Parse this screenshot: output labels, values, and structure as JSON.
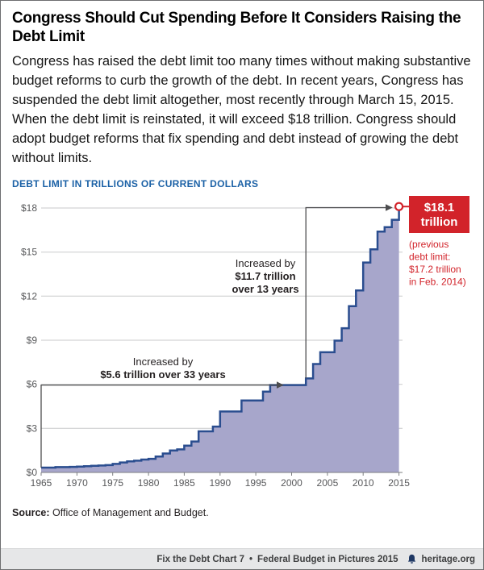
{
  "header": {
    "title": "Congress Should Cut Spending Before It Considers Raising the Debt Limit",
    "intro": "Congress has raised the debt limit too many times without making substantive budget reforms to curb the growth of the debt. In recent years, Congress has suspended the debt limit altogether, most recently through March 15, 2015. When the debt limit is reinstated, it will exceed $18 trillion. Congress should adopt budget reforms that fix spending and debt instead of growing the debt without limits."
  },
  "chart_data": {
    "type": "area",
    "step": true,
    "title": "DEBT LIMIT IN TRILLIONS OF CURRENT DOLLARS",
    "x": [
      1965,
      1966,
      1967,
      1968,
      1969,
      1970,
      1971,
      1972,
      1973,
      1974,
      1975,
      1976,
      1977,
      1978,
      1979,
      1980,
      1981,
      1982,
      1983,
      1984,
      1985,
      1986,
      1987,
      1988,
      1989,
      1990,
      1991,
      1992,
      1993,
      1994,
      1995,
      1996,
      1997,
      1998,
      1999,
      2000,
      2001,
      2002,
      2003,
      2004,
      2005,
      2006,
      2007,
      2008,
      2009,
      2010,
      2011,
      2012,
      2013,
      2014,
      2015
    ],
    "values": [
      0.33,
      0.33,
      0.36,
      0.36,
      0.38,
      0.4,
      0.43,
      0.45,
      0.47,
      0.5,
      0.58,
      0.68,
      0.75,
      0.8,
      0.88,
      0.93,
      1.08,
      1.29,
      1.49,
      1.57,
      1.82,
      2.11,
      2.8,
      2.8,
      3.12,
      4.15,
      4.15,
      4.15,
      4.9,
      4.9,
      4.9,
      5.5,
      5.95,
      5.95,
      5.95,
      5.95,
      5.95,
      6.4,
      7.38,
      8.18,
      8.18,
      8.97,
      9.82,
      11.32,
      12.39,
      14.29,
      15.19,
      16.39,
      16.7,
      17.2,
      18.1
    ],
    "xlim": [
      1965,
      2015.5
    ],
    "ylim": [
      0,
      18
    ],
    "xtick_values": [
      1965,
      1970,
      1975,
      1980,
      1985,
      1990,
      1995,
      2000,
      2005,
      2010,
      2015
    ],
    "ytick_values": [
      0,
      3,
      6,
      9,
      12,
      15,
      18
    ],
    "ytick_labels": [
      "$0",
      "$3",
      "$6",
      "$9",
      "$12",
      "$15",
      "$18"
    ],
    "annotations": [
      {
        "lines": [
          "Increased by",
          "$5.6 trillion over 33 years"
        ]
      },
      {
        "lines": [
          "Increased by",
          "$11.7 trillion",
          "over 13 years"
        ]
      }
    ],
    "callout": {
      "label_lines": [
        "$18.1",
        "trillion"
      ],
      "note_lines": [
        "(previous",
        "debt limit:",
        "$17.2 trillion",
        "in Feb. 2014)"
      ]
    },
    "colors": {
      "area_fill": "#a7a6cb",
      "line_blue": "#2a4d8f",
      "label_blue": "#1b61a6",
      "accent_red": "#d2232a"
    },
    "legend_position": "none",
    "grid": "horizontal"
  },
  "source": {
    "label": "Source:",
    "text": "Office of Management and Budget."
  },
  "footer": {
    "chart_ref": "Fix the Debt Chart 7",
    "separator": "•",
    "series": "Federal Budget in Pictures 2015",
    "site": "heritage.org"
  }
}
